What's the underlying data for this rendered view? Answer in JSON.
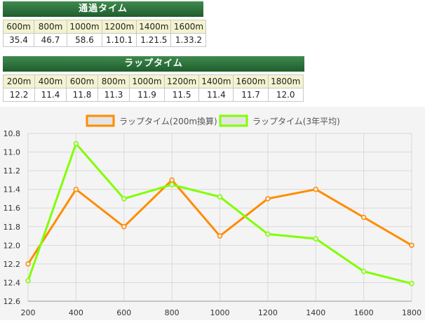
{
  "passing": {
    "title": "通過タイム",
    "headers": [
      "600m",
      "800m",
      "1000m",
      "1200m",
      "1400m",
      "1600m"
    ],
    "values": [
      "35.4",
      "46.7",
      "58.6",
      "1.10.1",
      "1.21.5",
      "1.33.2"
    ]
  },
  "lap": {
    "title": "ラップタイム",
    "headers": [
      "200m",
      "400m",
      "600m",
      "800m",
      "1000m",
      "1200m",
      "1400m",
      "1600m",
      "1800m"
    ],
    "values": [
      "12.2",
      "11.4",
      "11.8",
      "11.3",
      "11.9",
      "11.5",
      "11.4",
      "11.7",
      "12.0"
    ]
  },
  "chart_data": {
    "type": "line",
    "x": [
      200,
      400,
      600,
      800,
      1000,
      1200,
      1400,
      1600,
      1800
    ],
    "series": [
      {
        "name": "ラップタイム(200m換算)",
        "color": "#ff8c00",
        "values": [
          12.2,
          11.4,
          11.8,
          11.3,
          11.9,
          11.5,
          11.4,
          11.7,
          12.0
        ]
      },
      {
        "name": "ラップタイム(3年平均)",
        "color": "#80ff00",
        "values": [
          12.38,
          10.91,
          11.5,
          11.35,
          11.48,
          11.88,
          11.93,
          12.28,
          12.41
        ]
      }
    ],
    "ylim": [
      10.8,
      12.6
    ],
    "y_reversed": true,
    "y_ticks": [
      "10.8",
      "11.0",
      "11.2",
      "11.4",
      "11.6",
      "11.8",
      "12.0",
      "12.2",
      "12.4",
      "12.6"
    ],
    "x_ticks": [
      "200",
      "400",
      "600",
      "800",
      "1000",
      "1200",
      "1400",
      "1600",
      "1800"
    ],
    "grid": true,
    "legend": "top-center"
  }
}
